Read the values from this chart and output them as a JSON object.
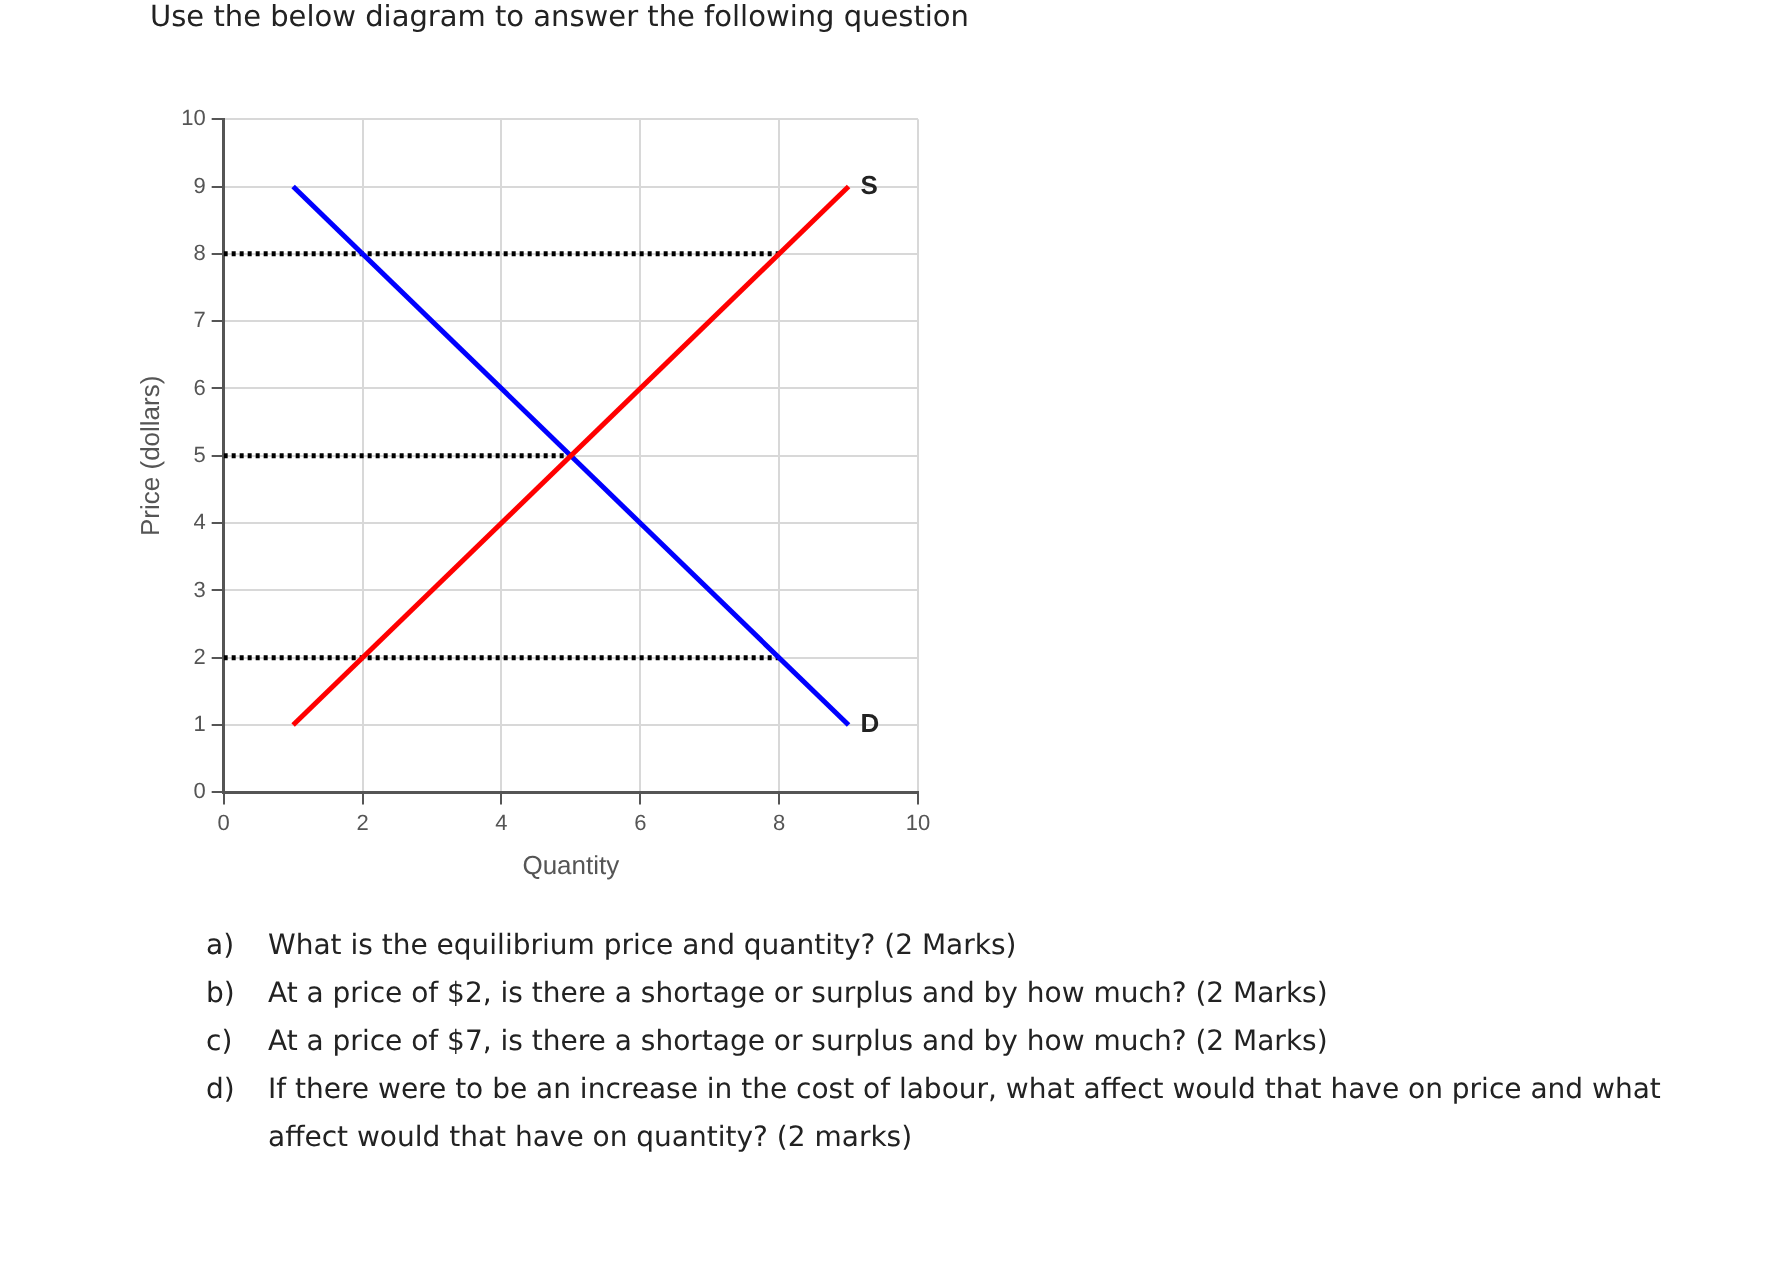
{
  "chart_data": {
    "type": "line",
    "title": "Use the below diagram to answer the following question",
    "xlabel": "Quantity",
    "ylabel": "Price (dollars)",
    "xlim": [
      0,
      10
    ],
    "xticks": [
      0,
      2,
      4,
      6,
      8,
      10
    ],
    "ylim": [
      0,
      10
    ],
    "yticks": [
      0,
      1,
      2,
      3,
      4,
      5,
      6,
      7,
      8,
      9,
      10
    ],
    "grid": true,
    "legend": false,
    "marker": "none",
    "series": [
      {
        "name": "S",
        "color": "#ff0000",
        "x": [
          1,
          9
        ],
        "values": [
          1,
          9
        ],
        "line_style": "solid"
      },
      {
        "name": "D",
        "color": "#0000ff",
        "x": [
          1,
          9
        ],
        "values": [
          9,
          1
        ],
        "line_style": "solid"
      },
      {
        "color": "#000000",
        "x": [
          0,
          8
        ],
        "values": [
          8,
          8
        ],
        "line_style": "dotted"
      },
      {
        "color": "#000000",
        "x": [
          0,
          5
        ],
        "values": [
          5,
          5
        ],
        "line_style": "dotted"
      },
      {
        "color": "#000000",
        "x": [
          0,
          8
        ],
        "values": [
          2,
          2
        ],
        "line_style": "dotted"
      }
    ],
    "annotations": [
      "a)\tWhat is the equilibrium price and quantity? (2 Marks)",
      "b)\tAt a price of $2, is there a shortage or surplus and by how much? (2 Marks)",
      "c)\tAt a price of $7, is there a shortage or surplus and by how much? (2 Marks)",
      "d)\tIf there were to be an increase in the cost of labour, what affect would that have on price and what affect would that have on quantity? (2 marks)"
    ]
  }
}
